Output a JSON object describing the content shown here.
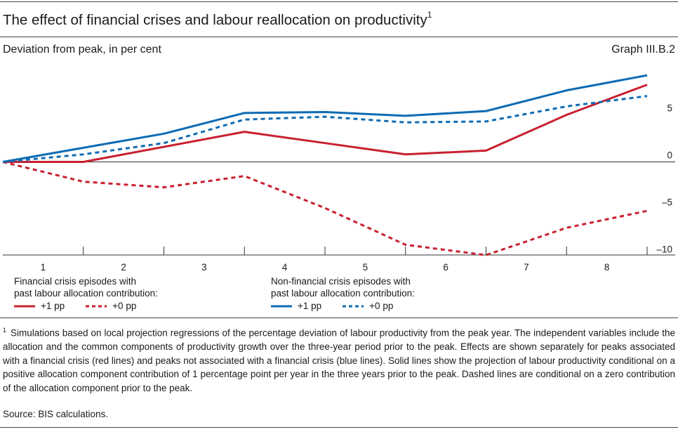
{
  "header": {
    "title": "The effect of financial crises and labour reallocation on productivity",
    "title_note": "1",
    "subtitle": "Deviation from peak, in per cent",
    "graph_id": "Graph III.B.2"
  },
  "colors": {
    "red": "#c8202f",
    "blue": "#0e6bb3",
    "axis": "#333333"
  },
  "legend": {
    "financial": {
      "heading_line1": "Financial crisis episodes with",
      "heading_line2": "past labour allocation contribution:",
      "solid_label": "+1 pp",
      "dashed_label": "+0 pp"
    },
    "non_financial": {
      "heading_line1": "Non-financial crisis episodes with",
      "heading_line2": "past labour allocation contribution:",
      "solid_label": "+1 pp",
      "dashed_label": "+0 pp"
    }
  },
  "chart_data": {
    "type": "line",
    "categories": [
      "1",
      "2",
      "3",
      "4",
      "5",
      "6",
      "7",
      "8"
    ],
    "x": [
      0,
      1,
      2,
      3,
      4,
      5,
      6,
      7,
      8
    ],
    "ylim": [
      -10,
      10
    ],
    "yticks": [
      -10,
      -5,
      0,
      5
    ],
    "ytick_labels": [
      "–10",
      "–5",
      "0",
      "5"
    ],
    "grid": false,
    "series": [
      {
        "name": "Financial crisis episodes, +1 pp",
        "color": "#c8202f",
        "style": "solid",
        "values": [
          0,
          0,
          1.6,
          3.2,
          2.0,
          0.8,
          1.2,
          5.0,
          8.2
        ]
      },
      {
        "name": "Financial crisis episodes, +0 pp",
        "color": "#c8202f",
        "style": "dashed",
        "values": [
          0,
          -2.1,
          -2.7,
          -1.5,
          -4.9,
          -8.8,
          -9.9,
          -7.0,
          -5.2
        ]
      },
      {
        "name": "Non-financial crisis episodes, +1 pp",
        "color": "#0e6bb3",
        "style": "solid",
        "values": [
          0,
          1.5,
          3.0,
          5.2,
          5.3,
          4.9,
          5.4,
          7.6,
          9.2
        ]
      },
      {
        "name": "Non-financial crisis episodes, +0 pp",
        "color": "#0e6bb3",
        "style": "dashed",
        "values": [
          0,
          0.8,
          2.0,
          4.5,
          4.8,
          4.2,
          4.3,
          5.9,
          7.0
        ]
      }
    ]
  },
  "footnote": {
    "marker": "1",
    "text": "Simulations based on local projection regressions of the percentage deviation of labour productivity from the peak year. The independent variables include the allocation and the common components of productivity growth over the three-year period prior to the peak. Effects are shown separately for peaks associated with a financial crisis (red lines) and peaks not associated with a financial crisis (blue lines). Solid lines show the projection of labour productivity conditional on a positive allocation component contribution of 1 percentage point per year in the three years prior to the peak. Dashed lines are conditional on a zero contribution of the allocation component prior to the peak."
  },
  "source": "Source: BIS calculations."
}
